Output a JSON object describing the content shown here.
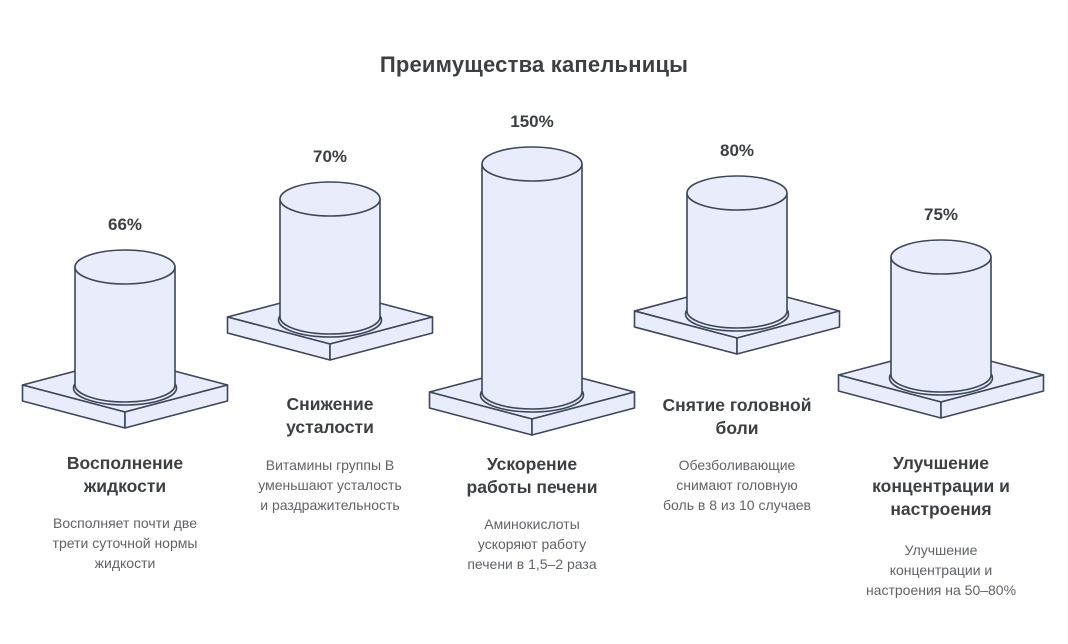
{
  "page": {
    "title": "Преимущества капельницы"
  },
  "colors": {
    "background": "#ffffff",
    "shape_fill": "#e9edfb",
    "shape_stroke": "#3d4759",
    "heading_text": "#3c4043",
    "description_text": "#5f6368"
  },
  "chart_data": {
    "type": "bar",
    "style": "isometric-cylinder-pictogram",
    "title": "Преимущества капельницы",
    "unit": "%",
    "legend": "none",
    "axes": "none",
    "categories": [
      "Восполнение жидкости",
      "Снижение усталости",
      "Ускорение работы печени",
      "Снятие головной боли",
      "Улучшение концентрации и настроения"
    ],
    "values": [
      66,
      70,
      150,
      80,
      75
    ],
    "items": [
      {
        "value": 66,
        "value_label": "66%",
        "title_lines": [
          "Восполнение",
          "жидкости"
        ],
        "description_lines": [
          "Восполняет почти две",
          "трети суточной нормы",
          "жидкости"
        ]
      },
      {
        "value": 70,
        "value_label": "70%",
        "title_lines": [
          "Снижение",
          "усталости"
        ],
        "description_lines": [
          "Витамины группы В",
          "уменьшают усталость",
          "и раздражительность"
        ]
      },
      {
        "value": 150,
        "value_label": "150%",
        "title_lines": [
          "Ускорение",
          "работы печени"
        ],
        "description_lines": [
          "Аминокислоты",
          "ускоряют работу",
          "печени в 1,5–2 раза"
        ]
      },
      {
        "value": 80,
        "value_label": "80%",
        "title_lines": [
          "Снятие головной",
          "боли"
        ],
        "description_lines": [
          "Обезболивающие",
          "снимают головную",
          "боль в 8 из 10 случаев"
        ]
      },
      {
        "value": 75,
        "value_label": "75%",
        "title_lines": [
          "Улучшение",
          "концентрации и",
          "настроения"
        ],
        "description_lines": [
          "Улучшение",
          "концентрации и",
          "настроения на 50–80%"
        ]
      }
    ]
  }
}
